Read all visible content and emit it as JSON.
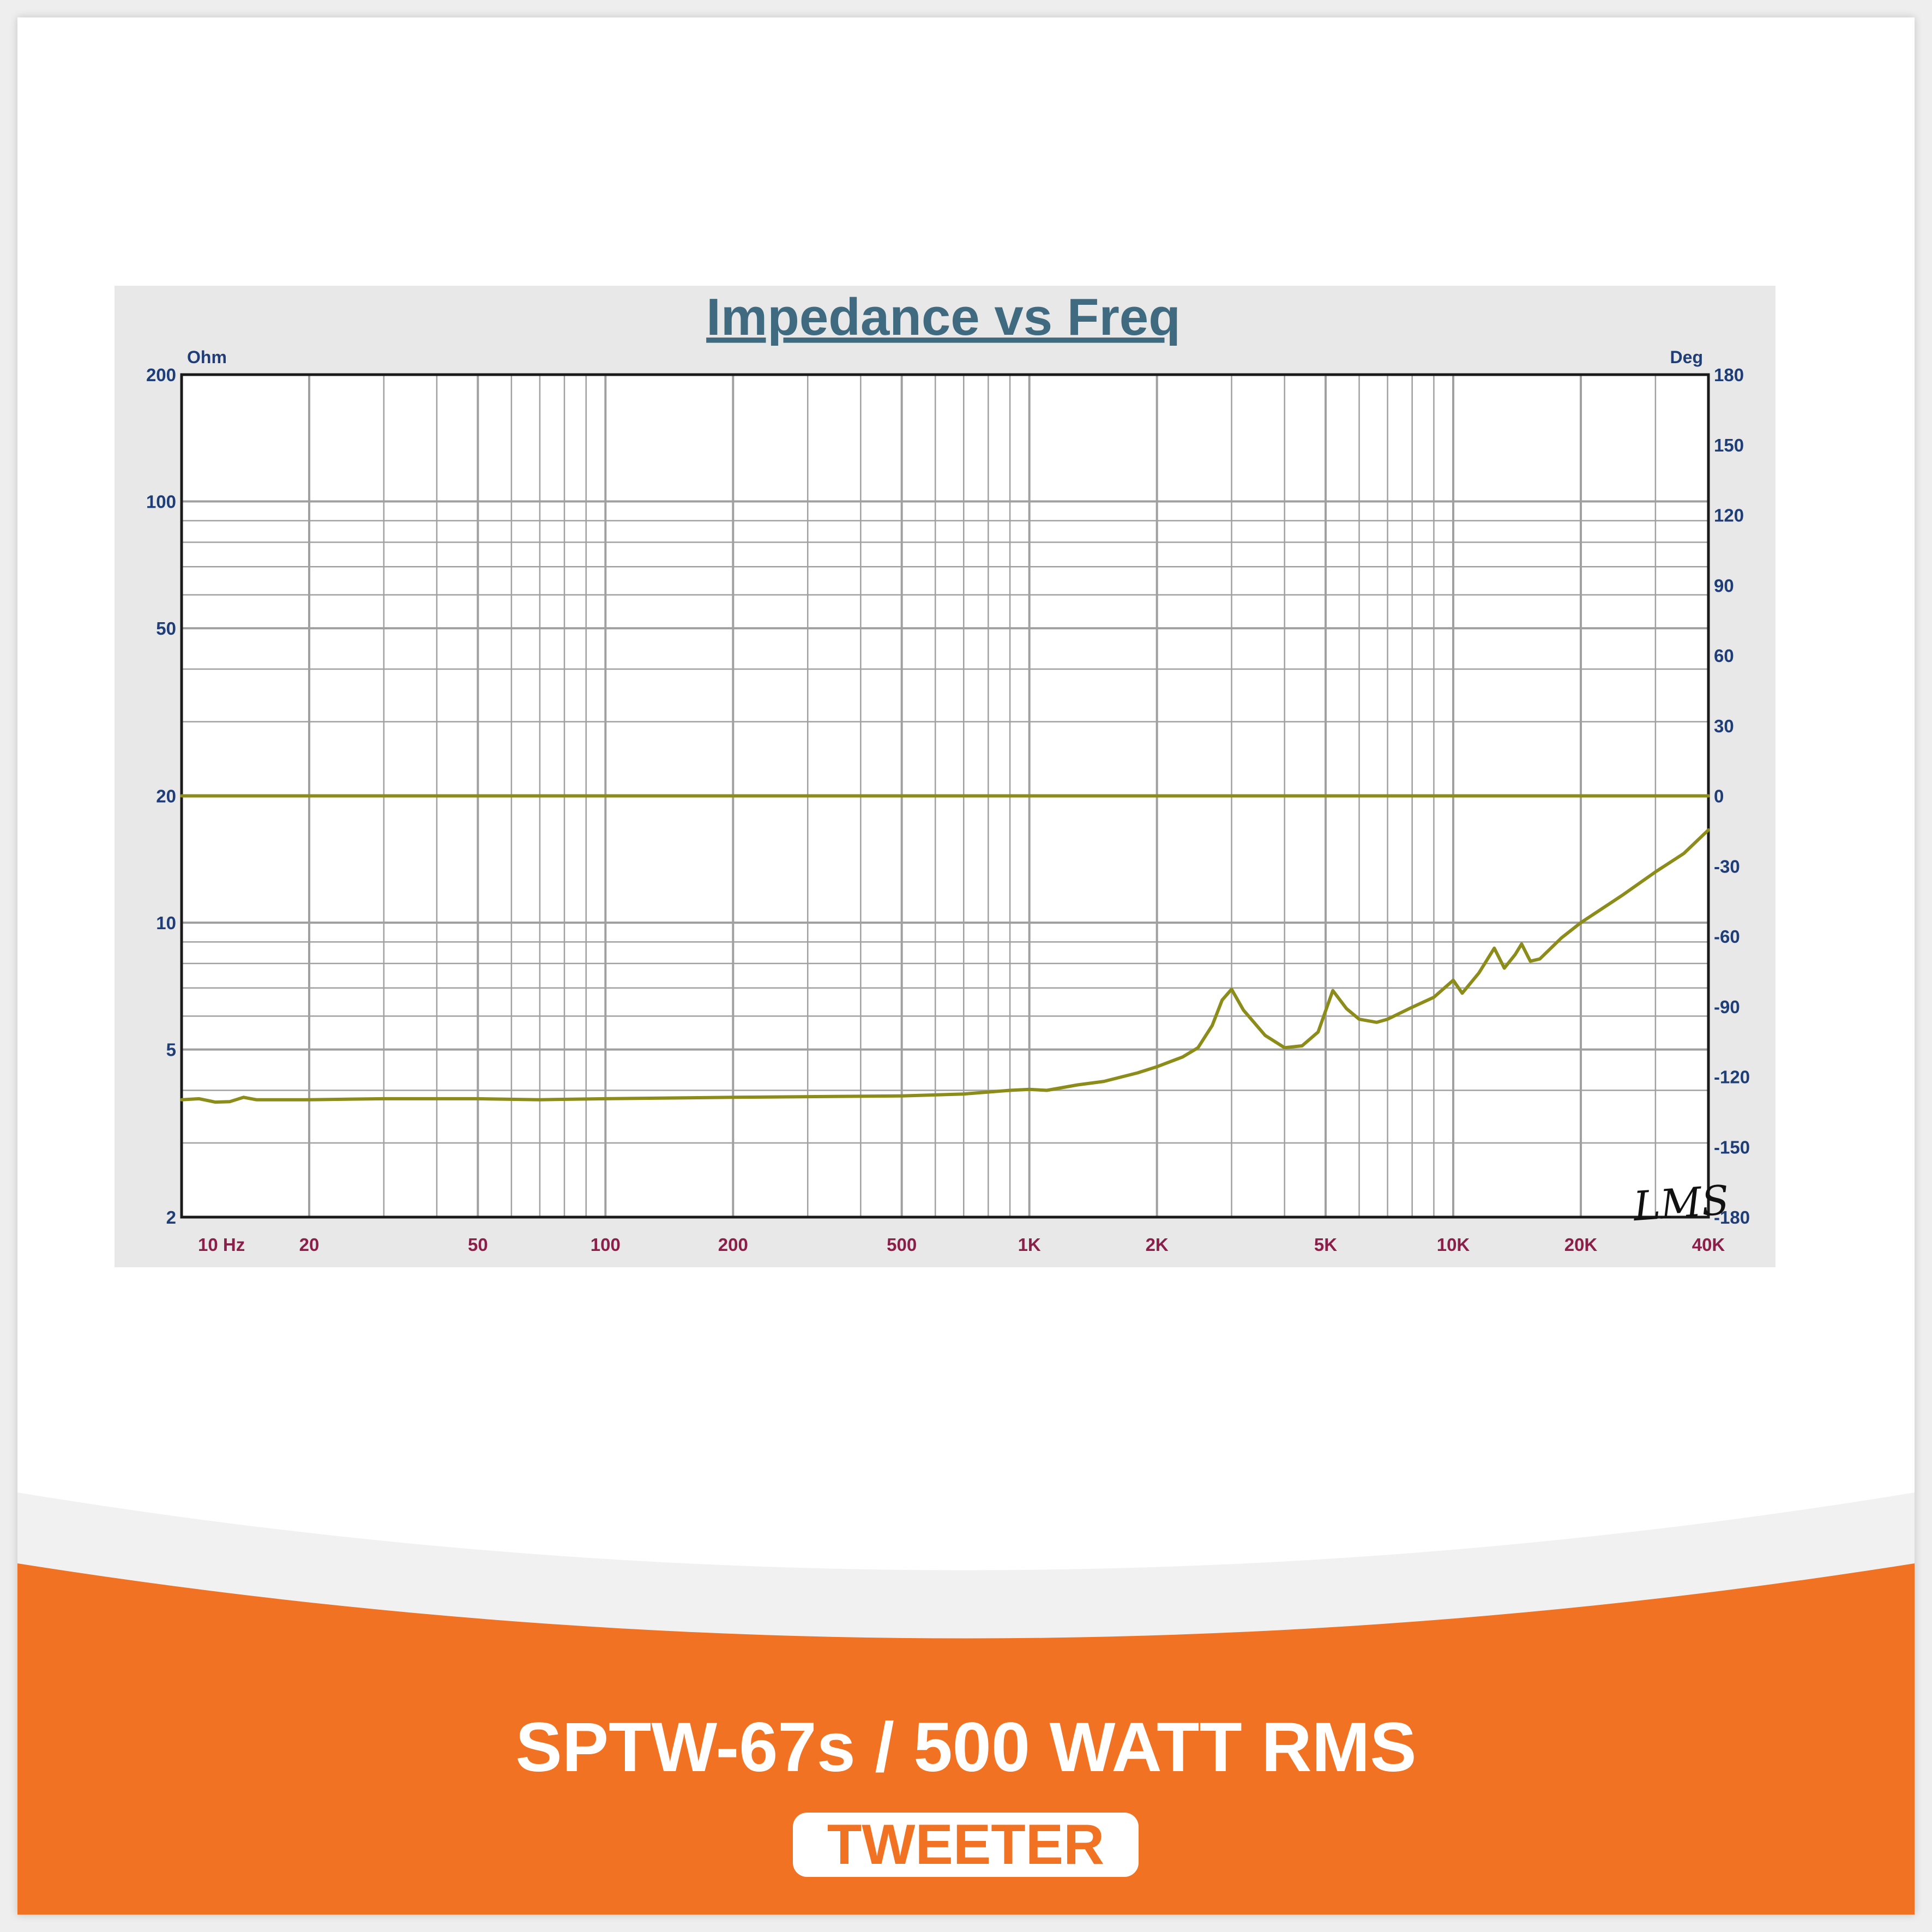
{
  "colors": {
    "accent": "#f07222",
    "chart_background": "#e8e8e8",
    "plot_background": "#ffffff",
    "grid": "#a0a0a0",
    "trace": "#8c8c1a",
    "title": "#3f6a80",
    "left_axis_text": "#1f3e78",
    "x_axis_text": "#8c1f4a"
  },
  "product": {
    "model": "SPTW-67s / 500 WATT RMS",
    "type": "TWEETER"
  },
  "chart_data": {
    "type": "line",
    "title": "Impedance vs Freq",
    "x_scale": "log",
    "y_scale": "log",
    "xlim": [
      10,
      40000
    ],
    "ylim": [
      2,
      200
    ],
    "y2lim": [
      -180,
      180
    ],
    "ylabel": "Ohm",
    "y2label": "Deg",
    "x_ticks": [
      {
        "value": 10,
        "label": "10  Hz"
      },
      {
        "value": 20,
        "label": "20"
      },
      {
        "value": 50,
        "label": "50"
      },
      {
        "value": 100,
        "label": "100"
      },
      {
        "value": 200,
        "label": "200"
      },
      {
        "value": 500,
        "label": "500"
      },
      {
        "value": 1000,
        "label": "1K"
      },
      {
        "value": 2000,
        "label": "2K"
      },
      {
        "value": 5000,
        "label": "5K"
      },
      {
        "value": 10000,
        "label": "10K"
      },
      {
        "value": 20000,
        "label": "20K"
      },
      {
        "value": 40000,
        "label": "40K"
      }
    ],
    "y_ticks": [
      {
        "value": 2,
        "label": "2"
      },
      {
        "value": 5,
        "label": "5"
      },
      {
        "value": 10,
        "label": "10"
      },
      {
        "value": 20,
        "label": "20"
      },
      {
        "value": 50,
        "label": "50"
      },
      {
        "value": 100,
        "label": "100"
      },
      {
        "value": 200,
        "label": "200"
      }
    ],
    "y2_ticks": [
      {
        "value": 180,
        "label": "180"
      },
      {
        "value": 150,
        "label": "150"
      },
      {
        "value": 120,
        "label": "120"
      },
      {
        "value": 90,
        "label": "90"
      },
      {
        "value": 60,
        "label": "60"
      },
      {
        "value": 30,
        "label": "30"
      },
      {
        "value": 0,
        "label": "0"
      },
      {
        "value": -30,
        "label": "-30"
      },
      {
        "value": -60,
        "label": "-60"
      },
      {
        "value": -90,
        "label": "-90"
      },
      {
        "value": -120,
        "label": "-120"
      },
      {
        "value": -150,
        "label": "-150"
      },
      {
        "value": -180,
        "label": "-180"
      }
    ],
    "grid": true,
    "watermark": "LMS",
    "series": [
      {
        "axis": "left",
        "x": [
          10,
          11,
          12,
          13,
          14,
          15,
          20,
          30,
          50,
          70,
          100,
          200,
          500,
          700,
          900,
          1000,
          1100,
          1300,
          1500,
          1800,
          2000,
          2300,
          2500,
          2700,
          2850,
          3000,
          3200,
          3600,
          4000,
          4400,
          4800,
          5200,
          5600,
          6000,
          6600,
          7000,
          8000,
          9000,
          10000,
          10500,
          11500,
          12500,
          13200,
          14000,
          14500,
          15200,
          16000,
          18000,
          20000,
          25000,
          30000,
          35000,
          40000
        ],
        "values": [
          3.8,
          3.82,
          3.75,
          3.76,
          3.85,
          3.8,
          3.8,
          3.82,
          3.82,
          3.8,
          3.82,
          3.85,
          3.88,
          3.92,
          4.0,
          4.02,
          4.0,
          4.12,
          4.2,
          4.4,
          4.55,
          4.8,
          5.05,
          5.7,
          6.55,
          6.95,
          6.2,
          5.4,
          5.05,
          5.1,
          5.5,
          6.9,
          6.25,
          5.9,
          5.8,
          5.9,
          6.3,
          6.65,
          7.3,
          6.8,
          7.6,
          8.7,
          7.8,
          8.4,
          8.9,
          8.1,
          8.2,
          9.2,
          10.0,
          11.6,
          13.2,
          14.6,
          16.6
        ]
      },
      {
        "axis": "right",
        "x": [
          10,
          40000
        ],
        "values": [
          0,
          0
        ]
      }
    ]
  }
}
